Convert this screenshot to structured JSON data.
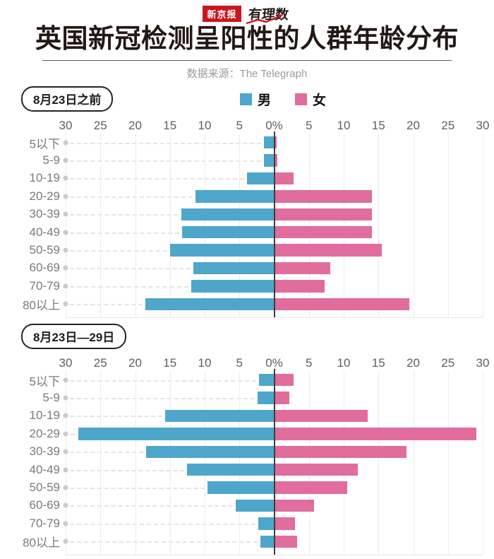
{
  "header": {
    "logo_left": "新京报",
    "logo_right": "有理数",
    "title": "英国新冠检测呈阳性的人群年龄分布",
    "source": "数据来源：The Telegraph"
  },
  "legend": {
    "male": "男",
    "female": "女"
  },
  "colors": {
    "male": "#4fa6cb",
    "female": "#e06d9d",
    "brand_red": "#c8161e",
    "axis_line": "#3d3d3d"
  },
  "axis": {
    "ticks": [
      "30",
      "25",
      "20",
      "15",
      "10",
      "5",
      "0%",
      "5",
      "10",
      "15",
      "20",
      "25",
      "30"
    ],
    "unit": "%",
    "max_each_side": 30
  },
  "chart_data": [
    {
      "type": "bar",
      "subtype": "population-pyramid",
      "title": "8月23日之前",
      "categories": [
        "5以下",
        "5-9",
        "10-19",
        "20-29",
        "30-39",
        "40-49",
        "50-59",
        "60-69",
        "70-79",
        "80以上"
      ],
      "series": [
        {
          "name": "男",
          "side": "left",
          "color": "#4fa6cb",
          "values": [
            1.5,
            1.5,
            3.9,
            11.3,
            13.3,
            13.2,
            15.0,
            11.6,
            11.9,
            18.5
          ]
        },
        {
          "name": "女",
          "side": "right",
          "color": "#e06d9d",
          "values": [
            0.4,
            0.5,
            2.8,
            14.1,
            14.1,
            14.1,
            15.5,
            8.1,
            7.3,
            19.4
          ]
        }
      ],
      "xlim": [
        -30,
        30
      ],
      "unit": "%",
      "grid": true,
      "legend_position": "top-center"
    },
    {
      "type": "bar",
      "subtype": "population-pyramid",
      "title": "8月23日—29日",
      "categories": [
        "5以下",
        "5-9",
        "10-19",
        "20-29",
        "30-39",
        "40-49",
        "50-59",
        "60-69",
        "70-79",
        "80以上"
      ],
      "series": [
        {
          "name": "男",
          "side": "left",
          "color": "#4fa6cb",
          "values": [
            2.2,
            2.4,
            15.7,
            28.2,
            18.4,
            12.5,
            9.6,
            5.5,
            2.3,
            2.0
          ]
        },
        {
          "name": "女",
          "side": "right",
          "color": "#e06d9d",
          "values": [
            2.8,
            2.2,
            13.5,
            29.1,
            19.0,
            12.0,
            10.5,
            5.7,
            3.0,
            3.3
          ]
        }
      ],
      "xlim": [
        -30,
        30
      ],
      "unit": "%",
      "grid": true,
      "legend_position": "none"
    }
  ]
}
